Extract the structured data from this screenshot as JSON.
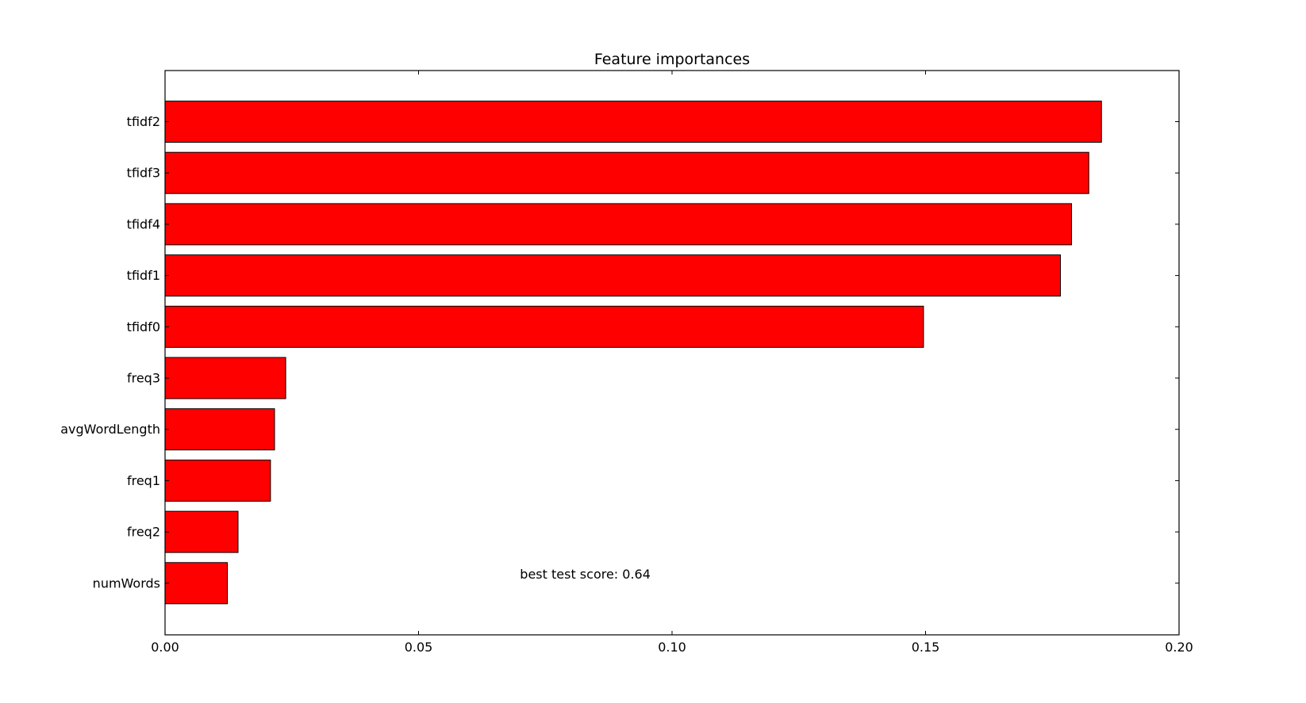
{
  "chart_data": {
    "type": "bar",
    "orientation": "horizontal",
    "title": "Feature importances",
    "xlabel": "",
    "ylabel": "",
    "xlim": [
      0.0,
      0.2
    ],
    "x_ticks": [
      0.0,
      0.05,
      0.1,
      0.15,
      0.2
    ],
    "x_tick_labels": [
      "0.00",
      "0.05",
      "0.10",
      "0.15",
      "0.20"
    ],
    "categories": [
      "tfidf2",
      "tfidf3",
      "tfidf4",
      "tfidf1",
      "tfidf0",
      "freq3",
      "avgWordLength",
      "freq1",
      "freq2",
      "numWords"
    ],
    "values": [
      0.1847,
      0.1822,
      0.1788,
      0.1766,
      0.1496,
      0.0238,
      0.0216,
      0.0208,
      0.0144,
      0.0123
    ],
    "bar_color": "#ff0000",
    "edge_color": "#000000",
    "grid": false,
    "legend": "none",
    "annotations": [
      {
        "text": "best test score: 0.64",
        "x": 0.07,
        "y": "numWords"
      }
    ]
  }
}
